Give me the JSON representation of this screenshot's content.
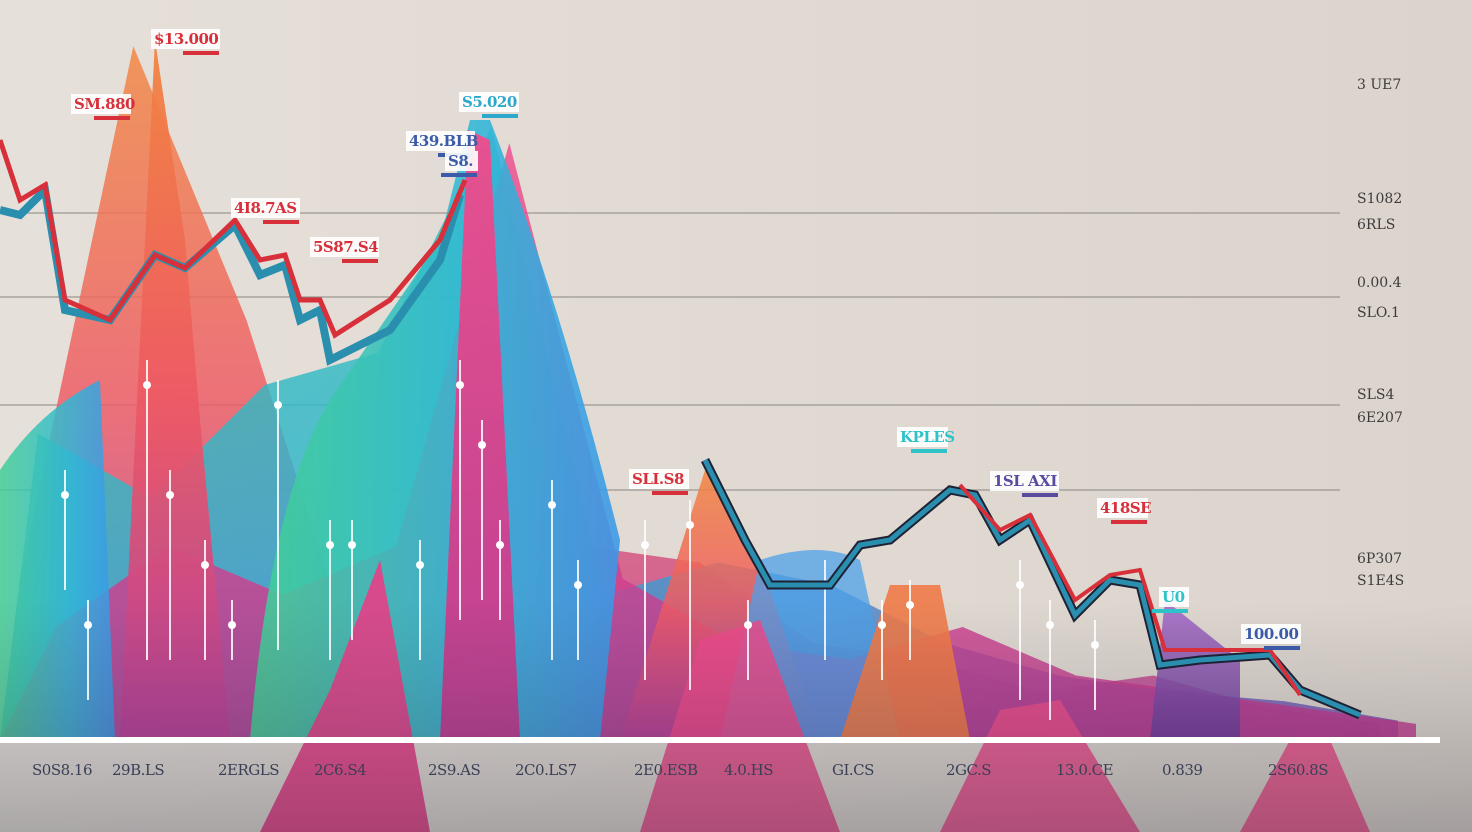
{
  "chart_data": {
    "type": "area",
    "x_tick_labels": [
      "S0S8.16",
      "29B.LS",
      "2ERGLS",
      "2C6.S4",
      "2S9.AS",
      "2C0.LS7",
      "2E0.ESB",
      "4.0.HS",
      "GI.CS",
      "2GC.S",
      "13.0.CE",
      "0.839",
      "2S60.8S"
    ],
    "y_tick_labels": [
      "3 UE7",
      "S1082",
      "6RLS",
      "0.00.4",
      "SLO.1",
      "SLS4",
      "6E207",
      "6P307",
      "S1E4S"
    ],
    "annotations": [
      {
        "text": "$13.000",
        "color": "#d8303a"
      },
      {
        "text": "SM.880",
        "color": "#d8303a"
      },
      {
        "text": "4I8.7AS",
        "color": "#d8303a"
      },
      {
        "text": "5S87.S4",
        "color": "#d8303a"
      },
      {
        "text": "439.BLB",
        "color": "#3b5aa8"
      },
      {
        "text": "S8.",
        "color": "#3b5aa8"
      },
      {
        "text": "S5.020",
        "color": "#2ba8cc"
      },
      {
        "text": "SLI.S8",
        "color": "#d8303a"
      },
      {
        "text": "KPLES",
        "color": "#2ec3c8"
      },
      {
        "text": "1SL AXI",
        "color": "#5a4aa0"
      },
      {
        "text": "418SE",
        "color": "#d8303a"
      },
      {
        "text": "U0",
        "color": "#2ec3c8"
      },
      {
        "text": "100.00",
        "color": "#3b5aa8"
      }
    ],
    "series": [
      {
        "color": "#d8303a",
        "values": [
          16.5,
          14.0,
          9.0,
          8.5,
          13.0,
          12.5,
          11.0,
          8.5,
          6.0,
          4.5,
          4.8,
          3.6,
          2.8,
          2.4
        ]
      },
      {
        "color": "#2a8fae",
        "values": [
          14.0,
          11.5,
          8.5,
          8.0,
          10.5,
          10.0,
          9.0,
          7.5,
          3.2,
          5.0,
          4.8,
          3.5,
          2.2,
          1.0
        ]
      }
    ],
    "areas": [
      {
        "color": "#ef5a5a",
        "values": [
          5.0,
          21.5,
          13.0,
          2.0,
          4.0,
          6.0,
          5.5,
          3.0,
          2.5,
          1.5,
          2.0,
          1.0,
          0.5
        ]
      },
      {
        "color": "#33c3a8",
        "values": [
          9.5,
          7.5,
          11.0,
          12.0,
          19.0,
          4.5,
          5.5,
          4.8,
          3.0,
          2.0,
          1.5,
          1.2,
          0.6
        ]
      },
      {
        "color": "#ec3f8f",
        "values": [
          3.5,
          6.0,
          4.5,
          6.0,
          18.5,
          5.0,
          3.0,
          2.5,
          3.5,
          2.0,
          1.5,
          1.0,
          0.5
        ]
      }
    ],
    "grid": true,
    "xlabel": "",
    "ylabel": ""
  }
}
